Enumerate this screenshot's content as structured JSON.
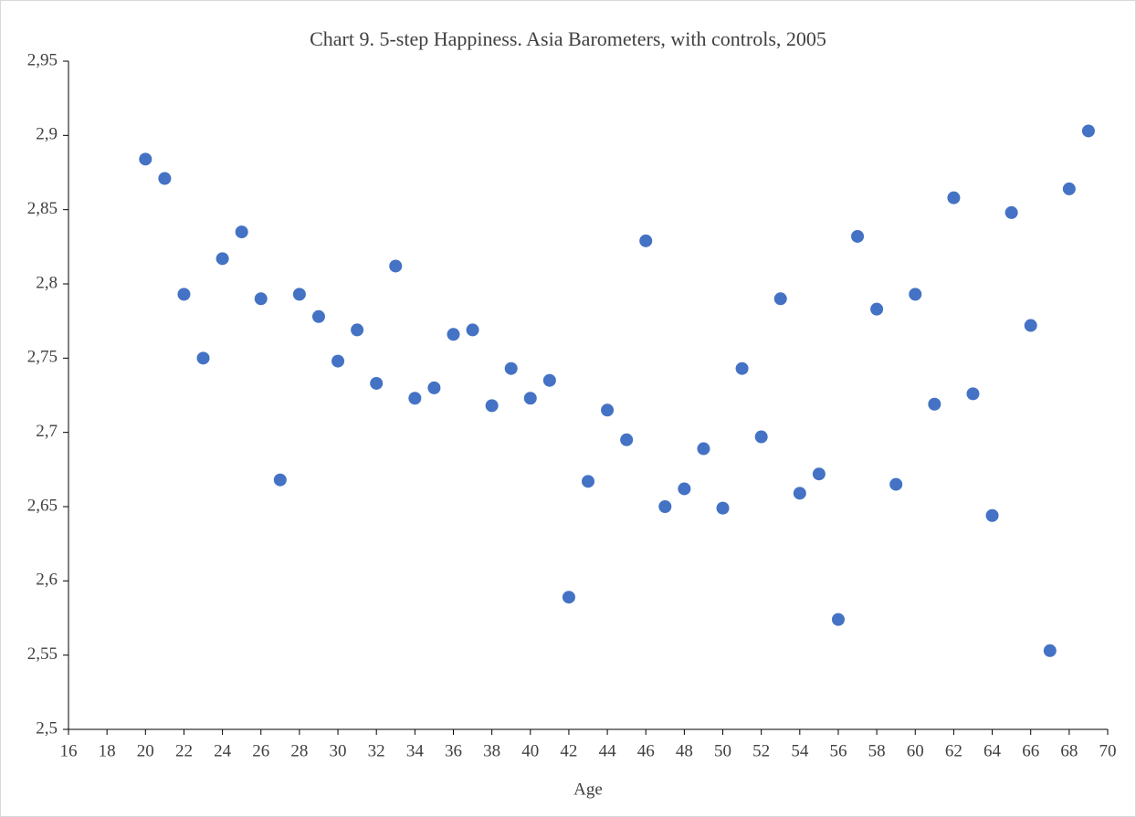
{
  "chart_data": {
    "type": "scatter",
    "title": "Chart 9.  5-step Happiness. Asia Barometers, with controls, 2005",
    "x_label": "Age",
    "color": "#4472c4",
    "grid": false,
    "x": [
      20,
      21,
      22,
      23,
      24,
      25,
      26,
      27,
      28,
      29,
      30,
      31,
      32,
      33,
      34,
      35,
      36,
      37,
      38,
      39,
      40,
      41,
      42,
      43,
      44,
      45,
      46,
      47,
      48,
      49,
      50,
      51,
      52,
      53,
      54,
      55,
      56,
      57,
      58,
      59,
      60,
      61,
      62,
      63,
      64,
      65,
      66,
      67,
      68,
      69
    ],
    "values": [
      2.884,
      2.871,
      2.793,
      2.75,
      2.817,
      2.835,
      2.79,
      2.668,
      2.793,
      2.778,
      2.748,
      2.769,
      2.733,
      2.812,
      2.723,
      2.73,
      2.766,
      2.769,
      2.718,
      2.743,
      2.723,
      2.735,
      2.589,
      2.667,
      2.715,
      2.695,
      2.829,
      2.65,
      2.662,
      2.689,
      2.649,
      2.743,
      2.697,
      2.79,
      2.659,
      2.672,
      2.574,
      2.832,
      2.783,
      2.665,
      2.793,
      2.719,
      2.858,
      2.726,
      2.644,
      2.848,
      2.772,
      2.553,
      2.864,
      2.903
    ],
    "xlim": [
      16,
      70
    ],
    "xticks": [
      16,
      18,
      20,
      22,
      24,
      26,
      28,
      30,
      32,
      34,
      36,
      38,
      40,
      42,
      44,
      46,
      48,
      50,
      52,
      54,
      56,
      58,
      60,
      62,
      64,
      66,
      68,
      70
    ],
    "ylim": [
      2.5,
      2.95
    ],
    "yticks": [
      {
        "value": 2.5,
        "label": "2,5"
      },
      {
        "value": 2.55,
        "label": "2,55"
      },
      {
        "value": 2.6,
        "label": "2,6"
      },
      {
        "value": 2.65,
        "label": "2,65"
      },
      {
        "value": 2.7,
        "label": "2,7"
      },
      {
        "value": 2.75,
        "label": "2,75"
      },
      {
        "value": 2.8,
        "label": "2,8"
      },
      {
        "value": 2.85,
        "label": "2,85"
      },
      {
        "value": 2.9,
        "label": "2,9"
      },
      {
        "value": 2.95,
        "label": "2,95"
      }
    ]
  }
}
